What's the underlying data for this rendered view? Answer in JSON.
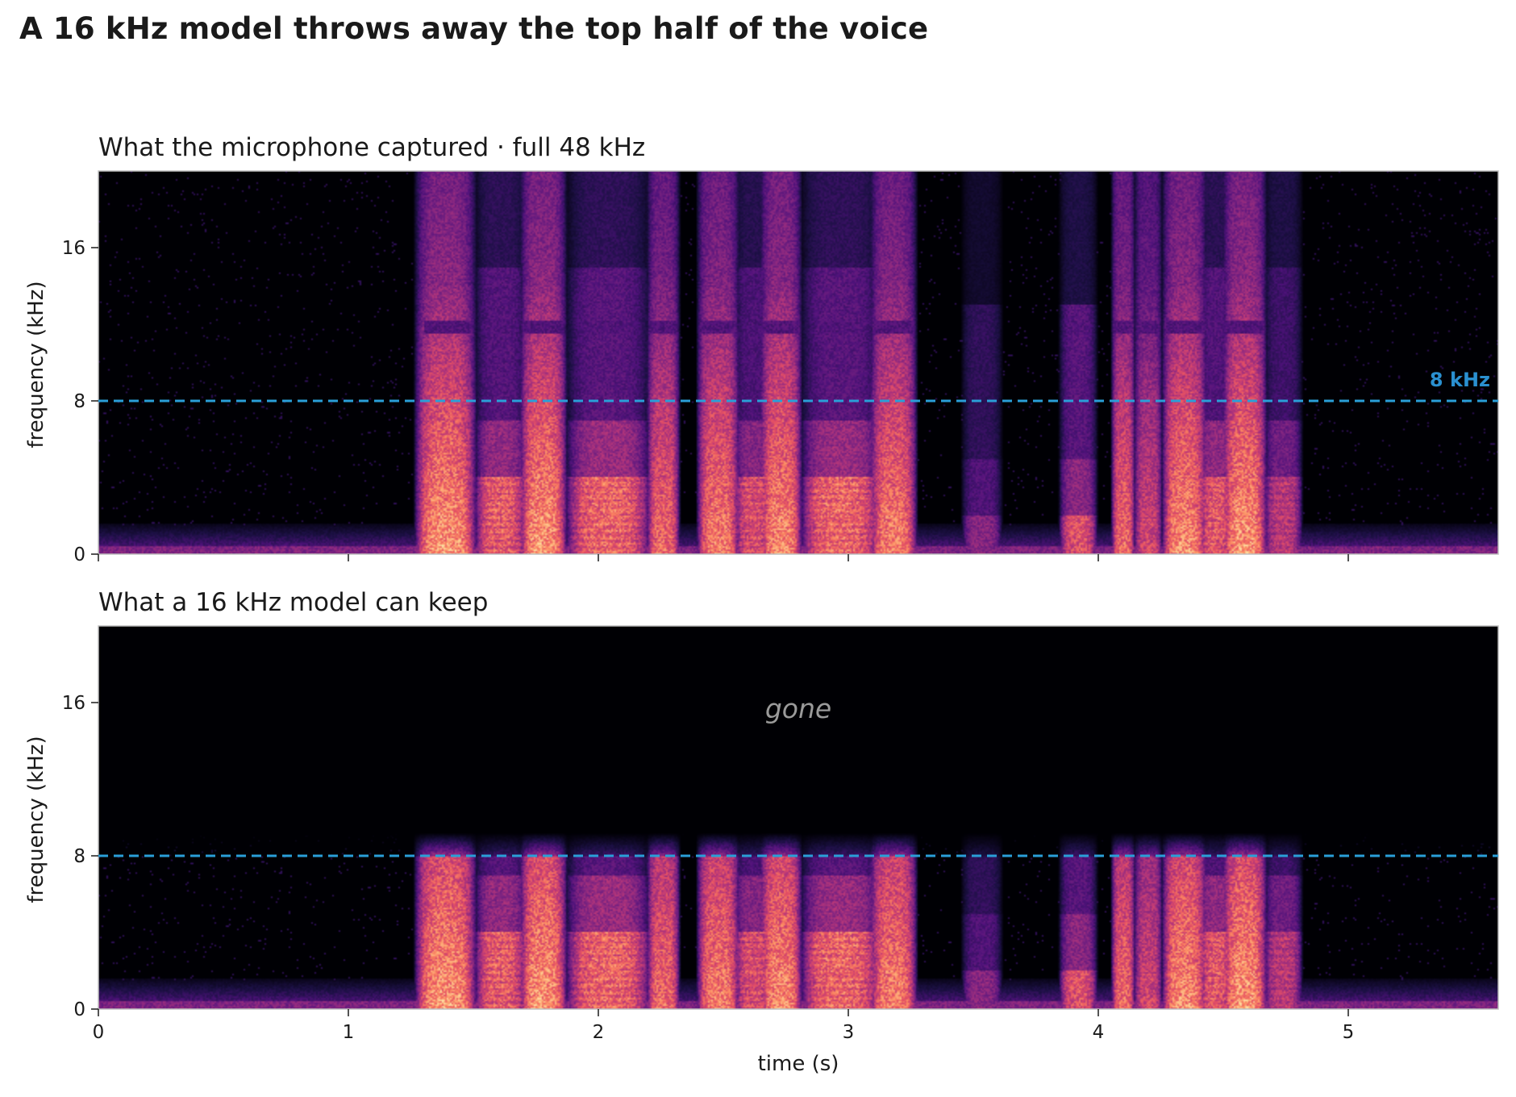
{
  "title": "A 16 kHz model throws away the top half of the voice",
  "colors": {
    "cutoff_line": "#2a9fd8",
    "cutoff_label": "#2a90d0",
    "background": "#050409",
    "colormap": [
      "#000004",
      "#1c1044",
      "#4f127b",
      "#812581",
      "#b5367a",
      "#e55064",
      "#fb8761",
      "#fec287",
      "#fcfdbf"
    ]
  },
  "chart_data": [
    {
      "type": "heatmap",
      "title": "What the microphone captured  ·  full 48 kHz",
      "xlabel": "",
      "ylabel": "frequency (kHz)",
      "xlim": [
        0,
        5.6
      ],
      "ylim": [
        0,
        20
      ],
      "xticks": [
        0,
        1,
        2,
        3,
        4,
        5
      ],
      "yticks": [
        0,
        8,
        16
      ],
      "show_x_tick_labels": false,
      "cutoff_khz": 8,
      "cutoff_label": "8 kHz",
      "band_limit_khz": 24,
      "grid": false
    },
    {
      "type": "heatmap",
      "title": "What a 16 kHz model can keep",
      "xlabel": "time (s)",
      "ylabel": "frequency (kHz)",
      "xlim": [
        0,
        5.6
      ],
      "ylim": [
        0,
        20
      ],
      "xticks": [
        0,
        1,
        2,
        3,
        4,
        5
      ],
      "yticks": [
        0,
        8,
        16
      ],
      "show_x_tick_labels": true,
      "cutoff_khz": 8,
      "band_limit_khz": 8,
      "annotation": "gone",
      "annotation_pos": [
        2.8,
        15.2
      ],
      "grid": false
    }
  ],
  "segments": [
    {
      "type": "vowel",
      "t0": 1.28,
      "t1": 1.5,
      "peak": 0.95
    },
    {
      "type": "voiced",
      "t0": 1.52,
      "t1": 1.7,
      "peak": 0.82
    },
    {
      "type": "vowel",
      "t0": 1.7,
      "t1": 1.86,
      "peak": 0.95
    },
    {
      "type": "voiced",
      "t0": 1.88,
      "t1": 2.2,
      "peak": 0.85
    },
    {
      "type": "vowel",
      "t0": 2.21,
      "t1": 2.31,
      "peak": 0.82
    },
    {
      "type": "vowel",
      "t0": 2.41,
      "t1": 2.55,
      "peak": 0.88
    },
    {
      "type": "voiced",
      "t0": 2.56,
      "t1": 2.68,
      "peak": 0.75
    },
    {
      "type": "vowel",
      "t0": 2.66,
      "t1": 2.8,
      "peak": 0.92
    },
    {
      "type": "voiced",
      "t0": 2.82,
      "t1": 3.12,
      "peak": 0.85
    },
    {
      "type": "vowel",
      "t0": 3.1,
      "t1": 3.26,
      "peak": 0.88
    },
    {
      "type": "weak",
      "t0": 3.47,
      "t1": 3.6,
      "peak": 0.5
    },
    {
      "type": "weak",
      "t0": 3.86,
      "t1": 3.98,
      "peak": 0.78
    },
    {
      "type": "vowel",
      "t0": 4.07,
      "t1": 4.13,
      "peak": 0.82
    },
    {
      "type": "vowel",
      "t0": 4.16,
      "t1": 4.24,
      "peak": 0.7
    },
    {
      "type": "vowel",
      "t0": 4.27,
      "t1": 4.42,
      "peak": 0.92
    },
    {
      "type": "voiced",
      "t0": 4.42,
      "t1": 4.52,
      "peak": 0.8
    },
    {
      "type": "vowel",
      "t0": 4.51,
      "t1": 4.66,
      "peak": 0.95
    },
    {
      "type": "voiced",
      "t0": 4.68,
      "t1": 4.8,
      "peak": 0.65
    }
  ]
}
